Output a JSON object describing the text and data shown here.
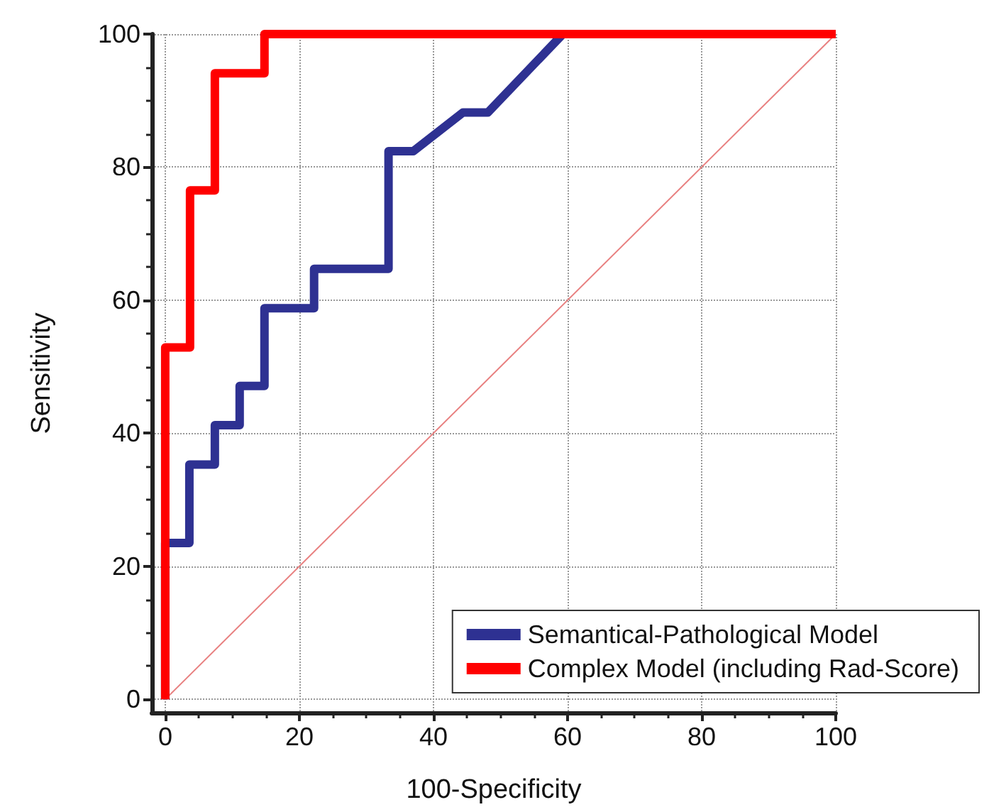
{
  "chart_data": {
    "type": "line",
    "xlabel": "100-Specificity",
    "ylabel": "Sensitivity",
    "xlim": [
      -2,
      100
    ],
    "ylim": [
      -2,
      100
    ],
    "xticks": [
      0,
      20,
      40,
      60,
      80,
      100
    ],
    "yticks": [
      0,
      20,
      40,
      60,
      80,
      100
    ],
    "grid": true,
    "legend": "bottom right",
    "marker": "none",
    "line_style": "solid",
    "series": [
      {
        "name": "Semantical-Pathological Model",
        "color": "#2e3192",
        "x": [
          0,
          0,
          3.6,
          3.6,
          7.4,
          7.4,
          11.1,
          11.1,
          14.8,
          14.8,
          22.2,
          22.2,
          33.3,
          33.3,
          37,
          44.4,
          48.1,
          59.3
        ],
        "values": [
          0,
          23.5,
          23.5,
          35.3,
          35.3,
          41.2,
          41.2,
          47.1,
          47.1,
          58.8,
          58.8,
          64.7,
          64.7,
          82.4,
          82.4,
          88.2,
          88.2,
          100
        ]
      },
      {
        "name": "Complex Model (including Rad-Score)",
        "color": "#ff0000",
        "x": [
          0,
          0,
          3.7,
          3.7,
          7.4,
          7.4,
          14.8,
          14.8,
          100
        ],
        "values": [
          0,
          52.9,
          52.9,
          76.5,
          76.5,
          94.1,
          94.1,
          100,
          100
        ]
      },
      {
        "color": "#e88080",
        "x": [
          0,
          100
        ],
        "values": [
          0,
          100
        ]
      }
    ]
  }
}
